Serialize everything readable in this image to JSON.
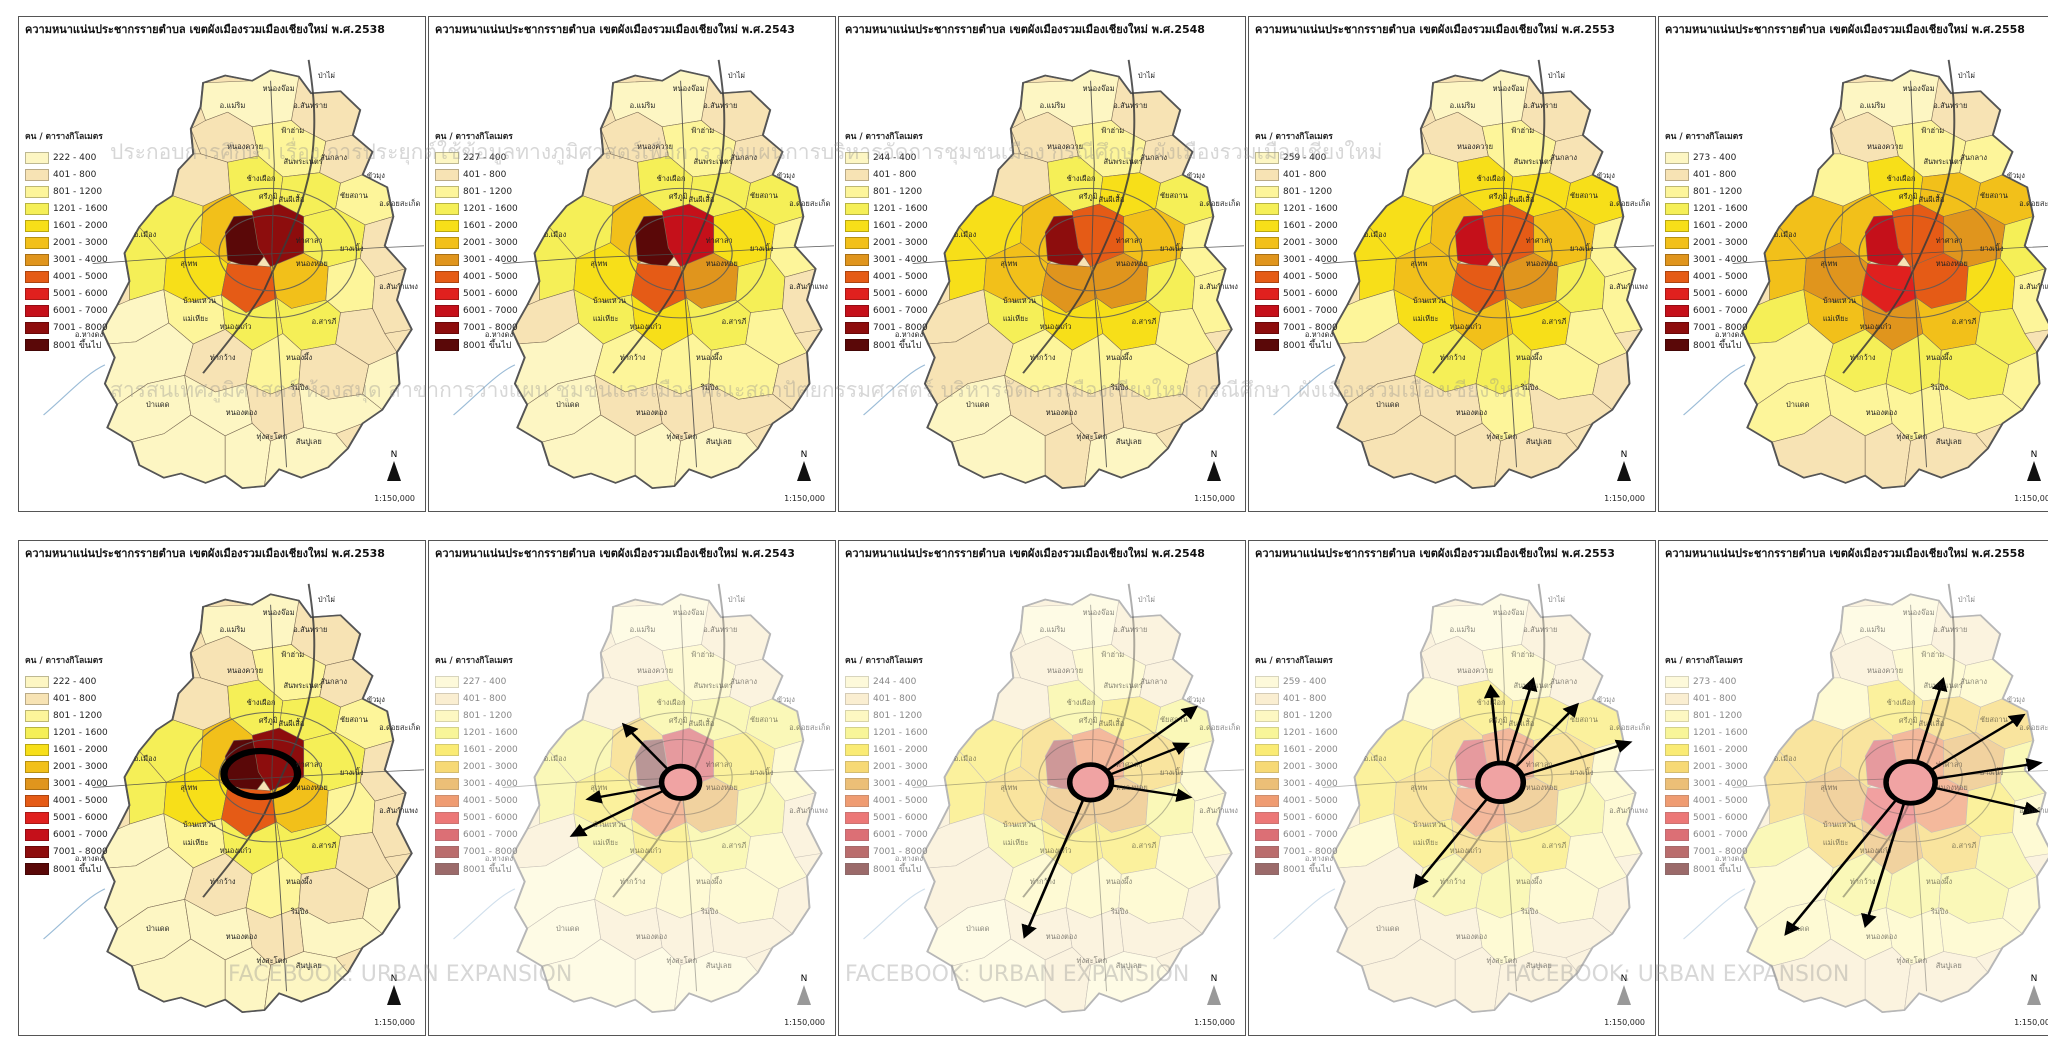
{
  "panels": [
    {
      "title": "ความหนาแน่นประชากรรายตำบล  เขตผังเมืองรวมเมืองเชียงใหม่  พ.ศ.2538",
      "legend_ranges": [
        "222 - 400",
        "401 - 800",
        "801 - 1200",
        "1201 - 1600",
        "1601 - 2000",
        "2001 - 3000",
        "3001 - 4000",
        "4001 - 5000",
        "5001 - 6000",
        "6001 - 7000",
        "7001 - 8000",
        "8001 ขึ้นไป"
      ]
    },
    {
      "title": "ความหนาแน่นประชากรรายตำบล  เขตผังเมืองรวมเมืองเชียงใหม่  พ.ศ.2543",
      "legend_ranges": [
        "227 - 400",
        "401 - 800",
        "801 - 1200",
        "1201 - 1600",
        "1601 - 2000",
        "2001 - 3000",
        "3001 - 4000",
        "4001 - 5000",
        "5001 - 6000",
        "6001 - 7000",
        "7001 - 8000",
        "8001 ขึ้นไป"
      ]
    },
    {
      "title": "ความหนาแน่นประชากรรายตำบล  เขตผังเมืองรวมเมืองเชียงใหม่  พ.ศ.2548",
      "legend_ranges": [
        "244 - 400",
        "401 - 800",
        "801 - 1200",
        "1201 - 1600",
        "1601 - 2000",
        "2001 - 3000",
        "3001 - 4000",
        "4001 - 5000",
        "5001 - 6000",
        "6001 - 7000",
        "7001 - 8000",
        "8001 ขึ้นไป"
      ]
    },
    {
      "title": "ความหนาแน่นประชากรรายตำบล  เขตผังเมืองรวมเมืองเชียงใหม่  พ.ศ.2553",
      "legend_ranges": [
        "259 - 400",
        "401 - 800",
        "801 - 1200",
        "1201 - 1600",
        "1601 - 2000",
        "2001 - 3000",
        "3001 - 4000",
        "4001 - 5000",
        "5001 - 6000",
        "6001 - 7000",
        "7001 - 8000",
        "8001 ขึ้นไป"
      ]
    },
    {
      "title": "ความหนาแน่นประชากรรายตำบล  เขตผังเมืองรวมเมืองเชียงใหม่  พ.ศ.2558",
      "legend_ranges": [
        "273 - 400",
        "401 - 800",
        "801 - 1200",
        "1201 - 1600",
        "1601 - 2000",
        "2001 - 3000",
        "3001 - 4000",
        "4001 - 5000",
        "5001 - 6000",
        "6001 - 7000",
        "7001 - 8000",
        "8001 ขึ้นไป"
      ]
    }
  ],
  "legend_title": "คน / ตารางกิโลเมตร",
  "legend_colors": [
    "#fdf6c3",
    "#f7e3b4",
    "#fdf59a",
    "#f5ef57",
    "#f7df19",
    "#f2c01a",
    "#e0951d",
    "#e55b16",
    "#e0201e",
    "#c5101a",
    "#8d0d0d",
    "#5a0808"
  ],
  "scale_text": "1:150,000",
  "north_label": "N",
  "places": {
    "a_mueang": "อ.เมือง",
    "a_sansai": "อ.สันทราย",
    "a_saraphi": "อ.สารภี",
    "a_hangdong": "อ.หางดง",
    "a_doisaket": "อ.ดอยสะเก็ด",
    "a_sankamphaeng": "อ.สันกำแพง",
    "a_maerim": "อ.แม่ริม",
    "t_nongpa": "หนองจ๊อม",
    "t_papong": "ป่าไผ่",
    "t_faham": "ฟ้าฮ่าม",
    "t_nongkhwai": "หนองควาย",
    "t_sanphranet": "สันพระเนตร",
    "t_khuangsing": "ช้างเผือก",
    "t_suthep": "สุเทพ",
    "t_tasala": "ท่าศาลา",
    "t_nongphueng": "หนองผึ้ง",
    "t_yangneung": "ยางเนิ้ง",
    "t_chaisathan": "ชัยสถาน",
    "t_khuamung": "ขัวมุง",
    "t_sanklang": "สันกลาง",
    "t_nonghoi": "หนองหอย",
    "t_bannaem": "บ้านแหวน",
    "t_nongkaew": "หนองแก๋ว",
    "t_maehia": "แม่เหียะ",
    "t_sanphisuea": "สันผีเสื้อ",
    "t_tasai": "ท่ากว้าง",
    "t_sanpa": "ป่าแดด",
    "t_rimping": "ริมปิง",
    "t_chiangmai": "ศรีภูมิ",
    "t_tungsatok": "ทุ่งสะโตก",
    "t_nongtong": "หนองตอง",
    "t_sanpong": "สันปูเลย"
  },
  "watermarks": {
    "top_line1": "ประกอบการศึกษา  เรื่อง  การประยุกต์ใช้ข้อมูลทางภูมิศาสตร์เพื่อการวางแผนการบริหารจัดการชุมชนเมือง กรณีศึกษา  ผังเมืองรวมเมืองเชียงใหม่",
    "top_line2": "สารสนเทศภูมิศาสตร์  ห้องสมุด  สาขาการวางแผน ชุมชนและเมือง  คณะสถาปัตยกรรมศาสตร์  บริหารจัดการเมืองเชียงใหม่  กรณีศึกษา  ผังเมืองรวมเมืองเชียงใหม่",
    "bottom_left": "FACEBOOK: URBAN EXPANSION",
    "bottom_mid": "FACEBOOK: URBAN EXPANSION",
    "bottom_right": "FACEBOOK: URBAN EXPANSION"
  }
}
